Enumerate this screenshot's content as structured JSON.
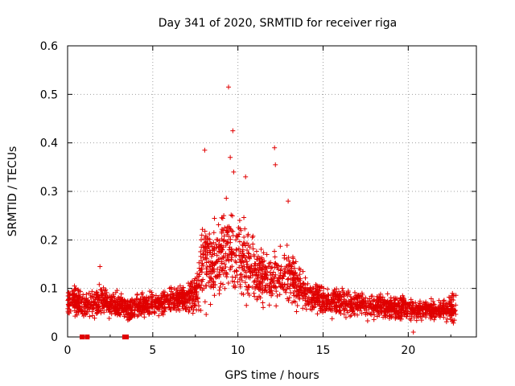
{
  "chart_data": {
    "type": "scatter",
    "title": "Day 341 of 2020, SRMTID for receiver riga",
    "xlabel": "GPS time / hours",
    "ylabel": "SRMTID / TECUs",
    "xlim": [
      0,
      24
    ],
    "ylim": [
      0,
      0.6
    ],
    "xticks": [
      0,
      5,
      10,
      15,
      20
    ],
    "yticks": [
      0,
      0.1,
      0.2,
      0.3,
      0.4,
      0.5,
      0.6
    ],
    "xtick_labels": [
      "0",
      "5",
      "10",
      "15",
      "20"
    ],
    "ytick_labels": [
      "0",
      "0.1",
      "0.2",
      "0.3",
      "0.4",
      "0.5",
      "0.6"
    ],
    "grid": true,
    "marker": "+",
    "color": "#e00000",
    "series": [
      {
        "name": "SRMTID",
        "description": "approx. envelope of dense scatter (time in hours, value in TECU)",
        "x": [
          0.0,
          0.5,
          1.0,
          1.5,
          2.0,
          2.5,
          3.0,
          3.5,
          4.0,
          4.5,
          5.0,
          5.5,
          6.0,
          6.5,
          7.0,
          7.5,
          8.0,
          8.5,
          9.0,
          9.5,
          10.0,
          10.5,
          11.0,
          11.5,
          12.0,
          12.5,
          13.0,
          13.5,
          14.0,
          14.5,
          15.0,
          15.5,
          16.0,
          16.5,
          17.0,
          17.5,
          18.0,
          18.5,
          19.0,
          19.5,
          20.0,
          20.5,
          21.0,
          21.5,
          22.0,
          22.5
        ],
        "median": [
          0.07,
          0.075,
          0.06,
          0.07,
          0.075,
          0.07,
          0.065,
          0.06,
          0.06,
          0.065,
          0.07,
          0.07,
          0.075,
          0.08,
          0.08,
          0.09,
          0.16,
          0.16,
          0.17,
          0.19,
          0.17,
          0.15,
          0.14,
          0.12,
          0.12,
          0.12,
          0.13,
          0.11,
          0.09,
          0.08,
          0.075,
          0.07,
          0.075,
          0.07,
          0.07,
          0.065,
          0.065,
          0.06,
          0.06,
          0.06,
          0.06,
          0.055,
          0.055,
          0.055,
          0.055,
          0.06
        ],
        "spread": [
          0.025,
          0.03,
          0.025,
          0.03,
          0.03,
          0.025,
          0.025,
          0.025,
          0.025,
          0.025,
          0.025,
          0.025,
          0.025,
          0.025,
          0.03,
          0.04,
          0.09,
          0.08,
          0.09,
          0.11,
          0.08,
          0.07,
          0.06,
          0.05,
          0.06,
          0.05,
          0.06,
          0.05,
          0.03,
          0.03,
          0.03,
          0.03,
          0.03,
          0.025,
          0.025,
          0.025,
          0.025,
          0.025,
          0.025,
          0.025,
          0.025,
          0.02,
          0.02,
          0.02,
          0.02,
          0.03
        ]
      }
    ],
    "outliers": [
      {
        "x": 9.45,
        "y": 0.515
      },
      {
        "x": 9.7,
        "y": 0.425
      },
      {
        "x": 12.15,
        "y": 0.39
      },
      {
        "x": 8.05,
        "y": 0.385
      },
      {
        "x": 9.55,
        "y": 0.37
      },
      {
        "x": 12.2,
        "y": 0.355
      },
      {
        "x": 10.45,
        "y": 0.33
      },
      {
        "x": 9.75,
        "y": 0.34
      },
      {
        "x": 12.95,
        "y": 0.28
      },
      {
        "x": 1.9,
        "y": 0.145
      },
      {
        "x": 0.85,
        "y": 0.0
      },
      {
        "x": 1.15,
        "y": 0.0
      },
      {
        "x": 3.35,
        "y": 0.0
      },
      {
        "x": 3.45,
        "y": 0.0
      },
      {
        "x": 20.3,
        "y": 0.01
      }
    ]
  }
}
